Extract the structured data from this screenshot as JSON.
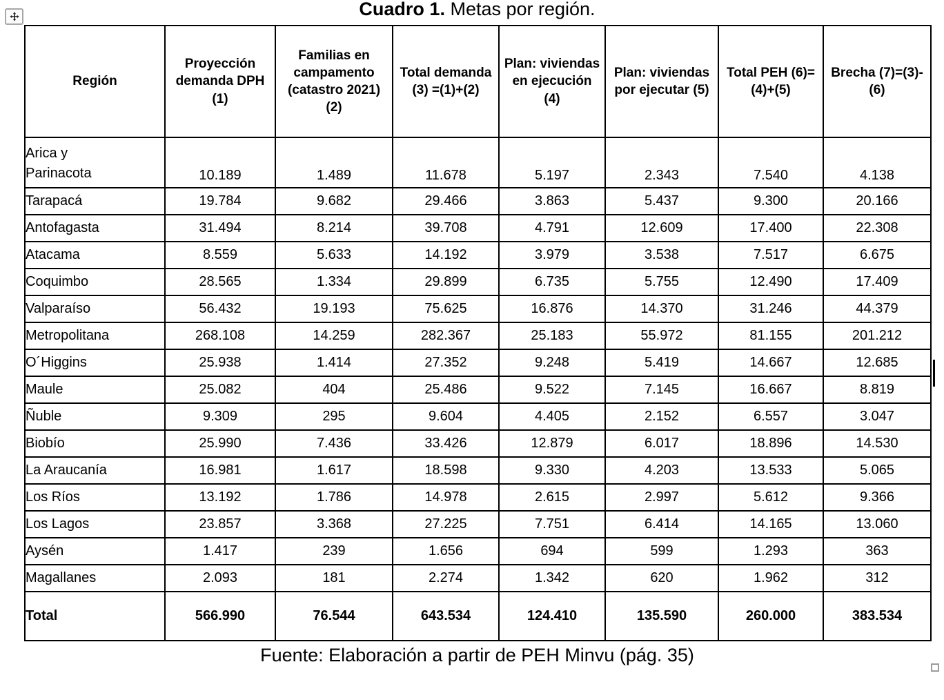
{
  "page": {
    "title_bold": "Cuadro 1.",
    "title_rest": " Metas por región.",
    "source": "Fuente: Elaboración a partir de PEH Minvu (pág. 35)"
  },
  "table": {
    "headers": [
      "Región",
      "Proyección demanda DPH (1)",
      "Familias en campamento (catastro 2021) (2)",
      "Total demanda (3) =(1)+(2)",
      "Plan: viviendas en ejecución (4)",
      "Plan: viviendas por ejecutar (5)",
      "Total PEH (6)=(4)+(5)",
      "Brecha (7)=(3)-(6)"
    ],
    "rows": [
      {
        "region": "Arica y\nParinacota",
        "values": [
          "10.189",
          "1.489",
          "11.678",
          "5.197",
          "2.343",
          "7.540",
          "4.138"
        ]
      },
      {
        "region": "Tarapacá",
        "values": [
          "19.784",
          "9.682",
          "29.466",
          "3.863",
          "5.437",
          "9.300",
          "20.166"
        ]
      },
      {
        "region": "Antofagasta",
        "values": [
          "31.494",
          "8.214",
          "39.708",
          "4.791",
          "12.609",
          "17.400",
          "22.308"
        ]
      },
      {
        "region": "Atacama",
        "values": [
          "8.559",
          "5.633",
          "14.192",
          "3.979",
          "3.538",
          "7.517",
          "6.675"
        ]
      },
      {
        "region": "Coquimbo",
        "values": [
          "28.565",
          "1.334",
          "29.899",
          "6.735",
          "5.755",
          "12.490",
          "17.409"
        ]
      },
      {
        "region": "Valparaíso",
        "values": [
          "56.432",
          "19.193",
          "75.625",
          "16.876",
          "14.370",
          "31.246",
          "44.379"
        ]
      },
      {
        "region": "Metropolitana",
        "values": [
          "268.108",
          "14.259",
          "282.367",
          "25.183",
          "55.972",
          "81.155",
          "201.212"
        ]
      },
      {
        "region": "O´Higgins",
        "values": [
          "25.938",
          "1.414",
          "27.352",
          "9.248",
          "5.419",
          "14.667",
          "12.685"
        ]
      },
      {
        "region": "Maule",
        "values": [
          "25.082",
          "404",
          "25.486",
          "9.522",
          "7.145",
          "16.667",
          "8.819"
        ]
      },
      {
        "region": "Ñuble",
        "values": [
          "9.309",
          "295",
          "9.604",
          "4.405",
          "2.152",
          "6.557",
          "3.047"
        ]
      },
      {
        "region": "Biobío",
        "values": [
          "25.990",
          "7.436",
          "33.426",
          "12.879",
          "6.017",
          "18.896",
          "14.530"
        ]
      },
      {
        "region": "La Araucanía",
        "values": [
          "16.981",
          "1.617",
          "18.598",
          "9.330",
          "4.203",
          "13.533",
          "5.065"
        ]
      },
      {
        "region": "Los Ríos",
        "values": [
          "13.192",
          "1.786",
          "14.978",
          "2.615",
          "2.997",
          "5.612",
          "9.366"
        ]
      },
      {
        "region": "Los Lagos",
        "values": [
          "23.857",
          "3.368",
          "27.225",
          "7.751",
          "6.414",
          "14.165",
          "13.060"
        ]
      },
      {
        "region": "Aysén",
        "values": [
          "1.417",
          "239",
          "1.656",
          "694",
          "599",
          "1.293",
          "363"
        ]
      },
      {
        "region": "Magallanes",
        "values": [
          "2.093",
          "181",
          "2.274",
          "1.342",
          "620",
          "1.962",
          "312"
        ]
      }
    ],
    "total_row": {
      "region": "Total",
      "values": [
        "566.990",
        "76.544",
        "643.534",
        "124.410",
        "135.590",
        "260.000",
        "383.534"
      ]
    }
  },
  "icons": {
    "move_handle": "move-icon",
    "resize_handle": "resize-handle-square",
    "text_cursor": "text-cursor-bar"
  },
  "colors": {
    "text": "#000000",
    "border": "#000000",
    "background": "#ffffff",
    "handle_border": "#a8a8a8",
    "resize_border": "#9c9c9c"
  }
}
